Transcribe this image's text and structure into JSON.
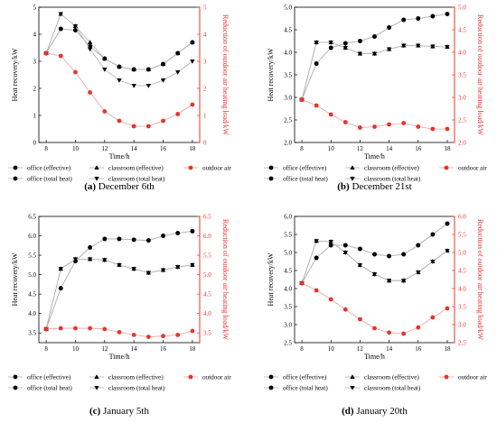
{
  "colors": {
    "black": "#000000",
    "red": "#e8332a",
    "series_line": "#b0b0b0",
    "red_line": "#e8a0a0"
  },
  "legend": {
    "office_effective": "office (effective)",
    "classroom_effective": "classroom (effective)",
    "outdoor_air": "outdoor air",
    "office_total": "office (total heat)",
    "classroom_total": "classroom (total heat)"
  },
  "chart_data": [
    {
      "type": "line",
      "caption_letter": "(a)",
      "caption_text": " December 6th",
      "xlabel": "Time/h",
      "ylabel": "Heat recovery/kW",
      "ylabel_right": "Reduction of outdoor air heating load/kW",
      "x": [
        8,
        9,
        10,
        11,
        12,
        13,
        14,
        15,
        16,
        17,
        18
      ],
      "xticks": [
        8,
        10,
        12,
        14,
        16,
        18
      ],
      "xlim": [
        7.5,
        18.5
      ],
      "ylim": [
        0,
        5
      ],
      "yticks": [
        0,
        1,
        2,
        3,
        4,
        5
      ],
      "ytick_labels": [
        "0",
        "1",
        "2",
        "3",
        "4",
        "5"
      ],
      "ylim_right": [
        0,
        5
      ],
      "yticks_right": [
        0,
        1,
        2,
        3,
        4,
        5
      ],
      "ytick_labels_right": [
        "0",
        "1",
        "2",
        "3",
        "4",
        "5"
      ],
      "series": [
        {
          "name": "office (effective)",
          "marker": "circle",
          "color": "#000000",
          "values": [
            3.3,
            4.2,
            4.15,
            3.55,
            3.1,
            2.8,
            2.7,
            2.7,
            2.9,
            3.3,
            3.7
          ]
        },
        {
          "name": "classroom (effective)",
          "marker": "triangle-up",
          "color": "#000000",
          "values": [
            3.3,
            4.75,
            4.3,
            3.7,
            3.1,
            2.8,
            2.7,
            2.7,
            2.9,
            3.3,
            3.7
          ]
        },
        {
          "name": "office (total heat)",
          "marker": "hexagon",
          "color": "#000000",
          "values": [
            3.3,
            4.2,
            4.15,
            3.55,
            3.1,
            2.8,
            2.7,
            2.7,
            2.9,
            3.3,
            3.7
          ]
        },
        {
          "name": "classroom (total heat)",
          "marker": "triangle-down",
          "color": "#000000",
          "values": [
            3.3,
            4.75,
            4.3,
            3.45,
            2.7,
            2.3,
            2.1,
            2.1,
            2.3,
            2.6,
            3.0
          ]
        },
        {
          "name": "outdoor air",
          "marker": "circle",
          "color": "#e8332a",
          "axis": "right",
          "values": [
            3.3,
            3.2,
            2.6,
            1.85,
            1.15,
            0.8,
            0.6,
            0.6,
            0.8,
            1.05,
            1.4
          ]
        }
      ]
    },
    {
      "type": "line",
      "caption_letter": "(b)",
      "caption_text": " December 21st",
      "xlabel": "Time/h",
      "ylabel": "Heat recovery/kW",
      "ylabel_right": "Reduction of outdoor air heating load/kW",
      "x": [
        8,
        9,
        10,
        11,
        12,
        13,
        14,
        15,
        16,
        17,
        18
      ],
      "xticks": [
        8,
        10,
        12,
        14,
        16,
        18
      ],
      "xlim": [
        7.5,
        18.5
      ],
      "ylim": [
        2.0,
        5.0
      ],
      "yticks": [
        2.0,
        2.5,
        3.0,
        3.5,
        4.0,
        4.5,
        5.0
      ],
      "ytick_labels": [
        "2.0",
        "2.5",
        "3.0",
        "3.5",
        "4.0",
        "4.5",
        "5.0"
      ],
      "ylim_right": [
        2.0,
        5.0
      ],
      "yticks_right": [
        2.0,
        2.5,
        3.0,
        3.5,
        4.0,
        4.5,
        5.0
      ],
      "ytick_labels_right": [
        "2.0",
        "2.5",
        "3.0",
        "3.5",
        "4.0",
        "4.5",
        "5.0"
      ],
      "series": [
        {
          "name": "office (effective)",
          "marker": "circle",
          "color": "#000000",
          "values": [
            2.95,
            3.75,
            4.1,
            4.2,
            4.25,
            4.35,
            4.55,
            4.72,
            4.75,
            4.8,
            4.85
          ]
        },
        {
          "name": "classroom (effective)",
          "marker": "triangle-up",
          "color": "#000000",
          "values": [
            2.95,
            4.22,
            4.22,
            4.1,
            3.97,
            3.97,
            4.07,
            4.15,
            4.15,
            4.13,
            4.12
          ]
        },
        {
          "name": "office (total heat)",
          "marker": "hexagon",
          "color": "#000000",
          "values": [
            2.95,
            3.75,
            4.1,
            4.2,
            4.25,
            4.35,
            4.55,
            4.72,
            4.75,
            4.8,
            4.85
          ]
        },
        {
          "name": "classroom (total heat)",
          "marker": "triangle-down",
          "color": "#000000",
          "values": [
            2.95,
            4.22,
            4.22,
            4.1,
            3.97,
            3.97,
            4.07,
            4.15,
            4.15,
            4.13,
            4.12
          ]
        },
        {
          "name": "outdoor air",
          "marker": "circle",
          "color": "#e8332a",
          "axis": "right",
          "values": [
            2.95,
            2.82,
            2.62,
            2.45,
            2.33,
            2.35,
            2.4,
            2.43,
            2.35,
            2.3,
            2.3
          ]
        }
      ]
    },
    {
      "type": "line",
      "caption_letter": "(c)",
      "caption_text": " January 5th",
      "xlabel": "Time/h",
      "ylabel": "Heat recovery/kW",
      "ylabel_right": "Reduction of outdoor air heating load/kW",
      "x": [
        8,
        9,
        10,
        11,
        12,
        13,
        14,
        15,
        16,
        17,
        18
      ],
      "xticks": [
        8,
        10,
        12,
        14,
        16,
        18
      ],
      "xlim": [
        7.5,
        18.5
      ],
      "ylim": [
        3.25,
        6.5
      ],
      "yticks": [
        3.5,
        4.0,
        4.5,
        5.0,
        5.5,
        6.0,
        6.5
      ],
      "ytick_labels": [
        "3.5",
        "4.0",
        "4.5",
        "5.0",
        "5.5",
        "6.0",
        "6.5"
      ],
      "ylim_right": [
        3.25,
        6.5
      ],
      "yticks_right": [
        3.5,
        4.0,
        4.5,
        5.0,
        5.5,
        6.0,
        6.5
      ],
      "ytick_labels_right": [
        "3.5",
        "4.0",
        "4.5",
        "5.0",
        "5.5",
        "6.0",
        "6.5"
      ],
      "series": [
        {
          "name": "office (effective)",
          "marker": "circle",
          "color": "#000000",
          "values": [
            3.6,
            4.65,
            5.35,
            5.7,
            5.92,
            5.92,
            5.9,
            5.88,
            6.0,
            6.07,
            6.12
          ]
        },
        {
          "name": "classroom (effective)",
          "marker": "triangle-up",
          "color": "#000000",
          "values": [
            3.6,
            5.15,
            5.4,
            5.4,
            5.38,
            5.25,
            5.15,
            5.05,
            5.12,
            5.2,
            5.25
          ]
        },
        {
          "name": "office (total heat)",
          "marker": "hexagon",
          "color": "#000000",
          "values": [
            3.6,
            4.65,
            5.35,
            5.7,
            5.92,
            5.92,
            5.9,
            5.88,
            6.0,
            6.07,
            6.12
          ]
        },
        {
          "name": "classroom (total heat)",
          "marker": "triangle-down",
          "color": "#000000",
          "values": [
            3.6,
            5.15,
            5.4,
            5.4,
            5.38,
            5.25,
            5.15,
            5.05,
            5.12,
            5.2,
            5.25
          ]
        },
        {
          "name": "outdoor air",
          "marker": "circle",
          "color": "#e8332a",
          "axis": "right",
          "values": [
            3.6,
            3.62,
            3.62,
            3.62,
            3.6,
            3.52,
            3.45,
            3.4,
            3.42,
            3.45,
            3.55
          ]
        }
      ]
    },
    {
      "type": "line",
      "caption_letter": "(d)",
      "caption_text": " January 20th",
      "xlabel": "Time/h",
      "ylabel": "Heat recovery/kW",
      "ylabel_right": "Reduction of outdoor air heating load/kW",
      "x": [
        8,
        9,
        10,
        11,
        12,
        13,
        14,
        15,
        16,
        17,
        18
      ],
      "xticks": [
        8,
        10,
        12,
        14,
        16,
        18
      ],
      "xlim": [
        7.5,
        18.5
      ],
      "ylim": [
        2.5,
        6.0
      ],
      "yticks": [
        2.5,
        3.0,
        3.5,
        4.0,
        4.5,
        5.0,
        5.5,
        6.0
      ],
      "ytick_labels": [
        "2.5",
        "3.0",
        "3.5",
        "4.0",
        "4.5",
        "5.0",
        "5.5",
        "6.0"
      ],
      "ylim_right": [
        2.5,
        6.0
      ],
      "yticks_right": [
        2.5,
        3.0,
        3.5,
        4.0,
        4.5,
        5.0,
        5.5,
        6.0
      ],
      "ytick_labels_right": [
        "2.5",
        "3.0",
        "3.5",
        "4.0",
        "4.5",
        "5.0",
        "5.5",
        "6.0"
      ],
      "series": [
        {
          "name": "office (effective)",
          "marker": "circle",
          "color": "#000000",
          "values": [
            4.15,
            4.85,
            5.2,
            5.2,
            5.1,
            4.95,
            4.9,
            4.95,
            5.2,
            5.5,
            5.8
          ]
        },
        {
          "name": "classroom (effective)",
          "marker": "triangle-up",
          "color": "#000000",
          "values": [
            4.15,
            5.32,
            5.3,
            5.0,
            4.65,
            4.4,
            4.22,
            4.22,
            4.45,
            4.75,
            5.05
          ]
        },
        {
          "name": "office (total heat)",
          "marker": "hexagon",
          "color": "#000000",
          "values": [
            4.15,
            4.85,
            5.2,
            5.2,
            5.1,
            4.95,
            4.9,
            4.95,
            5.2,
            5.5,
            5.8
          ]
        },
        {
          "name": "classroom (total heat)",
          "marker": "triangle-down",
          "color": "#000000",
          "values": [
            4.15,
            5.32,
            5.3,
            5.0,
            4.65,
            4.4,
            4.22,
            4.22,
            4.45,
            4.75,
            5.05
          ]
        },
        {
          "name": "outdoor air",
          "marker": "circle",
          "color": "#e8332a",
          "axis": "right",
          "values": [
            4.15,
            3.95,
            3.7,
            3.42,
            3.15,
            2.9,
            2.78,
            2.75,
            2.92,
            3.2,
            3.45
          ]
        }
      ]
    }
  ]
}
